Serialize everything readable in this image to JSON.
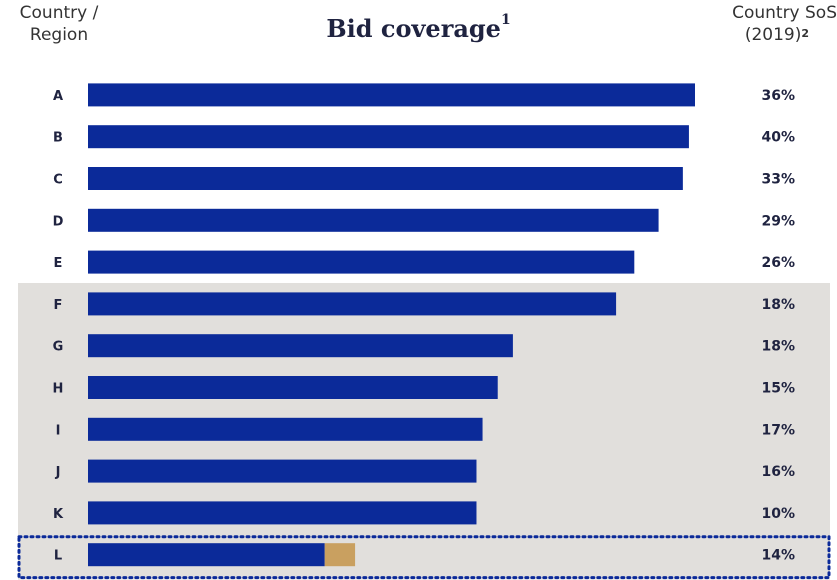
{
  "header": {
    "left_line1": "Country /",
    "left_line2": "Region",
    "title": "Bid coverage",
    "title_sup": "1",
    "right_line1": "Country SoS",
    "right_line2": "(2019)",
    "right_sup": "2"
  },
  "colors": {
    "bar": "#0b2a99",
    "highlight_segment": "#c9a060",
    "shaded_band": "#e1dfdc",
    "dotted_border": "#0b2a99"
  },
  "chart_data": {
    "type": "bar",
    "orientation": "horizontal",
    "categories": [
      "A",
      "B",
      "C",
      "D",
      "E",
      "F",
      "G",
      "H",
      "I",
      "J",
      "K",
      "L"
    ],
    "values": [
      100,
      99,
      98,
      94,
      90,
      87,
      70,
      67.5,
      65,
      64,
      64,
      39
    ],
    "highlight_extra": [
      0,
      0,
      0,
      0,
      0,
      0,
      0,
      0,
      0,
      0,
      0,
      5
    ],
    "country_sos_labels": [
      "36%",
      "40%",
      "33%",
      "29%",
      "26%",
      "18%",
      "18%",
      "15%",
      "17%",
      "16%",
      "10%",
      "14%"
    ],
    "shaded_categories": [
      "F",
      "G",
      "H",
      "I",
      "J",
      "K",
      "L"
    ],
    "highlighted_category": "L",
    "xlim": [
      0,
      100
    ],
    "grid": false,
    "title": "Bid coverage"
  }
}
